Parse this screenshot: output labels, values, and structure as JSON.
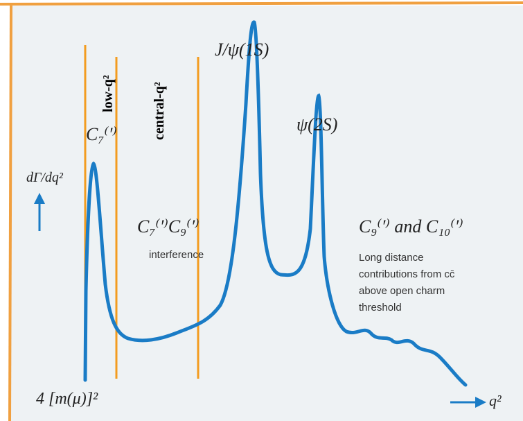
{
  "axes": {
    "y_label": "dΓ/dq²",
    "x_label": "q²",
    "x_start": "4 [m(μ)]²"
  },
  "regions": [
    {
      "label": "low-q²"
    },
    {
      "label": "central-q²"
    }
  ],
  "peaks": [
    {
      "label": "J/ψ(1S)"
    },
    {
      "label": "ψ(2S)"
    }
  ],
  "annotations": {
    "low": "C₇⁽′⁾",
    "central": "C₇⁽′⁾C₉⁽′⁾",
    "central_note": "interference",
    "high": "C₉⁽′⁾ and C₁₀⁽′⁾",
    "high_note": [
      "Long distance",
      "contributions from cc̄",
      "above open charm",
      "threshold"
    ]
  }
}
